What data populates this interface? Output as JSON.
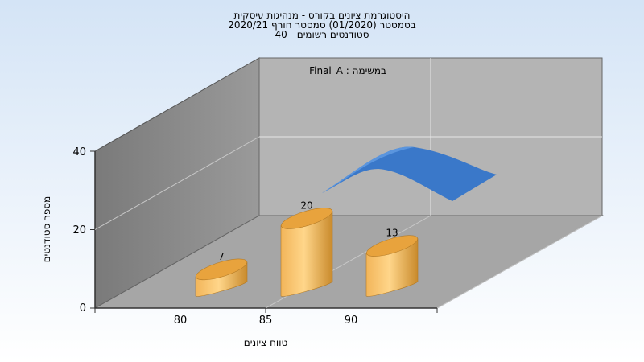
{
  "chart_data": {
    "type": "bar",
    "title_lines": [
      "היסטוגרמת ציונים בקורס - מנהיגות עיסקית",
      "בסמסטר  (01/2020)  סמסטר חורף  2020/21",
      "סטודנטים רשומים - 40"
    ],
    "legend_label": "Final_A : במשימה",
    "xlabel": "טווח ציונים",
    "ylabel": "מספר סטודנטים",
    "categories": [
      "80",
      "85",
      "90"
    ],
    "values": [
      7,
      20,
      13
    ],
    "yticks": [
      0,
      20,
      40
    ],
    "ylim": [
      0,
      40
    ],
    "grid": true,
    "curve": true,
    "colors": {
      "bar_light": "#FFD68A",
      "bar_mid": "#F2B55A",
      "bar_dark": "#C98A2C",
      "bar_top": "#E8A33D",
      "curve": "#3A78C9",
      "back_wall": "#B4B4B4",
      "side_wall": "#8C8C8C",
      "floor": "#A6A6A6",
      "bg_top": "#D4E4F6",
      "bg_bottom": "#FFFFFF"
    }
  }
}
